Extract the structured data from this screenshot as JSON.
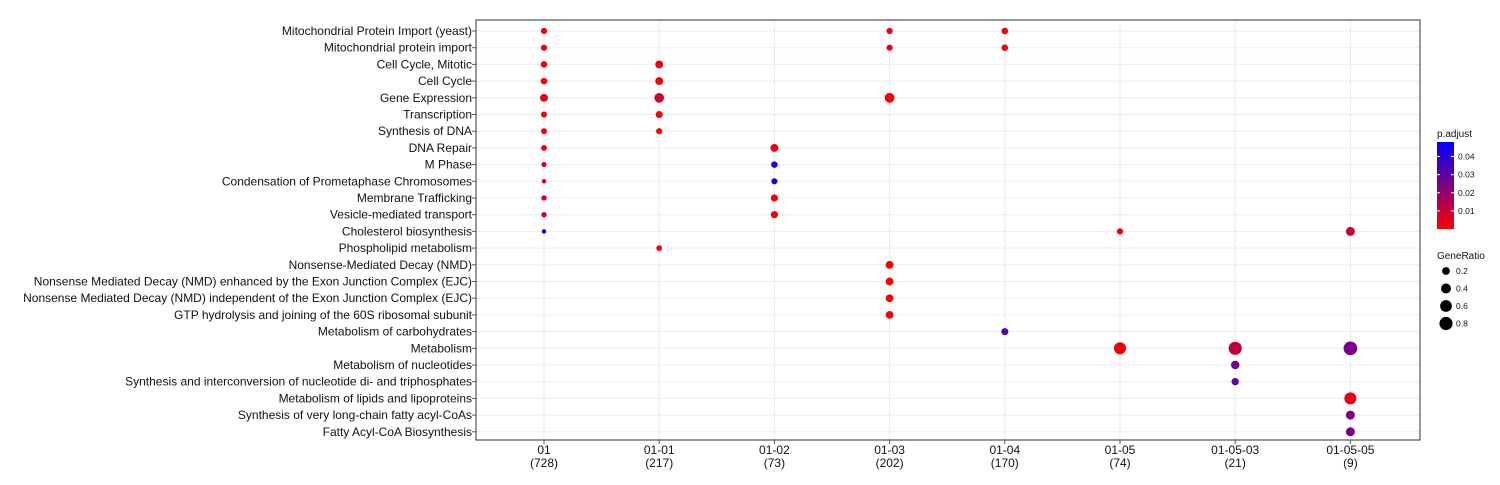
{
  "chart_data": {
    "type": "scatter",
    "title": "",
    "xlabel": "",
    "ylabel": "",
    "grid": true,
    "legend_position": "right",
    "categories_y": [
      "Mitochondrial Protein Import (yeast)",
      "Mitochondrial protein import",
      "Cell Cycle, Mitotic",
      "Cell Cycle",
      "Gene Expression",
      "Transcription",
      "Synthesis of DNA",
      "DNA Repair",
      "M Phase",
      "Condensation of Prometaphase Chromosomes",
      "Membrane Trafficking",
      "Vesicle-mediated transport",
      "Cholesterol biosynthesis",
      "Phospholipid metabolism",
      "Nonsense-Mediated Decay (NMD)",
      "Nonsense Mediated Decay (NMD) enhanced by the Exon Junction Complex (EJC)",
      "Nonsense Mediated Decay (NMD) independent of the Exon Junction Complex (EJC)",
      "GTP hydrolysis and joining of the 60S ribosomal subunit",
      "Metabolism of carbohydrates",
      "Metabolism",
      "Metabolism of nucleotides",
      "Synthesis and interconversion of nucleotide di- and triphosphates",
      "Metabolism of lipids and lipoproteins",
      "Synthesis of very long-chain fatty acyl-CoAs",
      "Fatty Acyl-CoA Biosynthesis"
    ],
    "categories_x": [
      {
        "name": "01",
        "count": "(728)"
      },
      {
        "name": "01-01",
        "count": "(217)"
      },
      {
        "name": "01-02",
        "count": "(73)"
      },
      {
        "name": "01-03",
        "count": "(202)"
      },
      {
        "name": "01-04",
        "count": "(170)"
      },
      {
        "name": "01-05",
        "count": "(74)"
      },
      {
        "name": "01-05-03",
        "count": "(21)"
      },
      {
        "name": "01-05-05",
        "count": "(9)"
      }
    ],
    "points": [
      {
        "x": "01",
        "y": "Mitochondrial Protein Import (yeast)",
        "gene_ratio": 0.1,
        "p_adjust": 0.003
      },
      {
        "x": "01",
        "y": "Mitochondrial protein import",
        "gene_ratio": 0.1,
        "p_adjust": 0.003
      },
      {
        "x": "01",
        "y": "Cell Cycle, Mitotic",
        "gene_ratio": 0.12,
        "p_adjust": 0.002
      },
      {
        "x": "01",
        "y": "Cell Cycle",
        "gene_ratio": 0.12,
        "p_adjust": 0.002
      },
      {
        "x": "01",
        "y": "Gene Expression",
        "gene_ratio": 0.21,
        "p_adjust": 0.004
      },
      {
        "x": "01",
        "y": "Transcription",
        "gene_ratio": 0.09,
        "p_adjust": 0.003
      },
      {
        "x": "01",
        "y": "Synthesis of DNA",
        "gene_ratio": 0.09,
        "p_adjust": 0.003
      },
      {
        "x": "01",
        "y": "DNA Repair",
        "gene_ratio": 0.08,
        "p_adjust": 0.003
      },
      {
        "x": "01",
        "y": "M Phase",
        "gene_ratio": 0.05,
        "p_adjust": 0.008
      },
      {
        "x": "01",
        "y": "Condensation of Prometaphase Chromosomes",
        "gene_ratio": 0.03,
        "p_adjust": 0.006
      },
      {
        "x": "01",
        "y": "Membrane Trafficking",
        "gene_ratio": 0.06,
        "p_adjust": 0.009
      },
      {
        "x": "01",
        "y": "Vesicle-mediated transport",
        "gene_ratio": 0.06,
        "p_adjust": 0.009
      },
      {
        "x": "01",
        "y": "Cholesterol biosynthesis",
        "gene_ratio": 0.03,
        "p_adjust": 0.045
      },
      {
        "x": "01-01",
        "y": "Cell Cycle, Mitotic",
        "gene_ratio": 0.21,
        "p_adjust": 0.002
      },
      {
        "x": "01-01",
        "y": "Cell Cycle",
        "gene_ratio": 0.21,
        "p_adjust": 0.002
      },
      {
        "x": "01-01",
        "y": "Gene Expression",
        "gene_ratio": 0.36,
        "p_adjust": 0.01
      },
      {
        "x": "01-01",
        "y": "Transcription",
        "gene_ratio": 0.15,
        "p_adjust": 0.002
      },
      {
        "x": "01-01",
        "y": "Synthesis of DNA",
        "gene_ratio": 0.1,
        "p_adjust": 0.002
      },
      {
        "x": "01-01",
        "y": "Phospholipid metabolism",
        "gene_ratio": 0.08,
        "p_adjust": 0.002
      },
      {
        "x": "01-02",
        "y": "DNA Repair",
        "gene_ratio": 0.21,
        "p_adjust": 0.003
      },
      {
        "x": "01-02",
        "y": "M Phase",
        "gene_ratio": 0.12,
        "p_adjust": 0.042
      },
      {
        "x": "01-02",
        "y": "Condensation of Prometaphase Chromosomes",
        "gene_ratio": 0.1,
        "p_adjust": 0.04
      },
      {
        "x": "01-02",
        "y": "Membrane Trafficking",
        "gene_ratio": 0.16,
        "p_adjust": 0.003
      },
      {
        "x": "01-02",
        "y": "Vesicle-mediated transport",
        "gene_ratio": 0.16,
        "p_adjust": 0.003
      },
      {
        "x": "01-03",
        "y": "Mitochondrial Protein Import (yeast)",
        "gene_ratio": 0.1,
        "p_adjust": 0.004
      },
      {
        "x": "01-03",
        "y": "Mitochondrial protein import",
        "gene_ratio": 0.1,
        "p_adjust": 0.004
      },
      {
        "x": "01-03",
        "y": "Gene Expression",
        "gene_ratio": 0.38,
        "p_adjust": 0.001
      },
      {
        "x": "01-03",
        "y": "Nonsense-Mediated Decay (NMD)",
        "gene_ratio": 0.21,
        "p_adjust": 0.001
      },
      {
        "x": "01-03",
        "y": "Nonsense Mediated Decay (NMD) enhanced by the Exon Junction Complex (EJC)",
        "gene_ratio": 0.21,
        "p_adjust": 0.001
      },
      {
        "x": "01-03",
        "y": "Nonsense Mediated Decay (NMD) independent of the Exon Junction Complex (EJC)",
        "gene_ratio": 0.2,
        "p_adjust": 0.001
      },
      {
        "x": "01-03",
        "y": "GTP hydrolysis and joining of the 60S ribosomal subunit",
        "gene_ratio": 0.2,
        "p_adjust": 0.001
      },
      {
        "x": "01-04",
        "y": "Mitochondrial Protein Import (yeast)",
        "gene_ratio": 0.12,
        "p_adjust": 0.002
      },
      {
        "x": "01-04",
        "y": "Mitochondrial protein import",
        "gene_ratio": 0.12,
        "p_adjust": 0.002
      },
      {
        "x": "01-04",
        "y": "Metabolism of carbohydrates",
        "gene_ratio": 0.15,
        "p_adjust": 0.033
      },
      {
        "x": "01-05",
        "y": "Cholesterol biosynthesis",
        "gene_ratio": 0.1,
        "p_adjust": 0.003
      },
      {
        "x": "01-05",
        "y": "Metabolism",
        "gene_ratio": 0.65,
        "p_adjust": 0.002
      },
      {
        "x": "01-05-03",
        "y": "Metabolism",
        "gene_ratio": 0.8,
        "p_adjust": 0.012
      },
      {
        "x": "01-05-03",
        "y": "Metabolism of nucleotides",
        "gene_ratio": 0.25,
        "p_adjust": 0.028
      },
      {
        "x": "01-05-03",
        "y": "Synthesis and interconversion of nucleotide di- and triphosphates",
        "gene_ratio": 0.17,
        "p_adjust": 0.03
      },
      {
        "x": "01-05-05",
        "y": "Cholesterol biosynthesis",
        "gene_ratio": 0.3,
        "p_adjust": 0.01
      },
      {
        "x": "01-05-05",
        "y": "Metabolism",
        "gene_ratio": 0.89,
        "p_adjust": 0.025
      },
      {
        "x": "01-05-05",
        "y": "Metabolism of lipids and lipoproteins",
        "gene_ratio": 0.65,
        "p_adjust": 0.004
      },
      {
        "x": "01-05-05",
        "y": "Synthesis of very long-chain fatty acyl-CoAs",
        "gene_ratio": 0.3,
        "p_adjust": 0.025
      },
      {
        "x": "01-05-05",
        "y": "Fatty Acyl-CoA Biosynthesis",
        "gene_ratio": 0.3,
        "p_adjust": 0.025
      }
    ],
    "legend_color": {
      "title": "p.adjust",
      "range": [
        0.0,
        0.048
      ],
      "low_color": "#ff0000",
      "high_color": "#0000ff",
      "ticks": [
        {
          "value": 0.04,
          "label": "0.04"
        },
        {
          "value": 0.03,
          "label": "0.03"
        },
        {
          "value": 0.02,
          "label": "0.02"
        },
        {
          "value": 0.01,
          "label": "0.01"
        }
      ]
    },
    "legend_size": {
      "title": "GeneRatio",
      "items": [
        {
          "value": 0.2,
          "label": "0.2"
        },
        {
          "value": 0.4,
          "label": "0.4"
        },
        {
          "value": 0.6,
          "label": "0.6"
        },
        {
          "value": 0.8,
          "label": "0.8"
        }
      ]
    },
    "colors": {
      "grid": "#ebebeb",
      "axis_line": "#333333",
      "tick_mark": "#555555"
    }
  }
}
